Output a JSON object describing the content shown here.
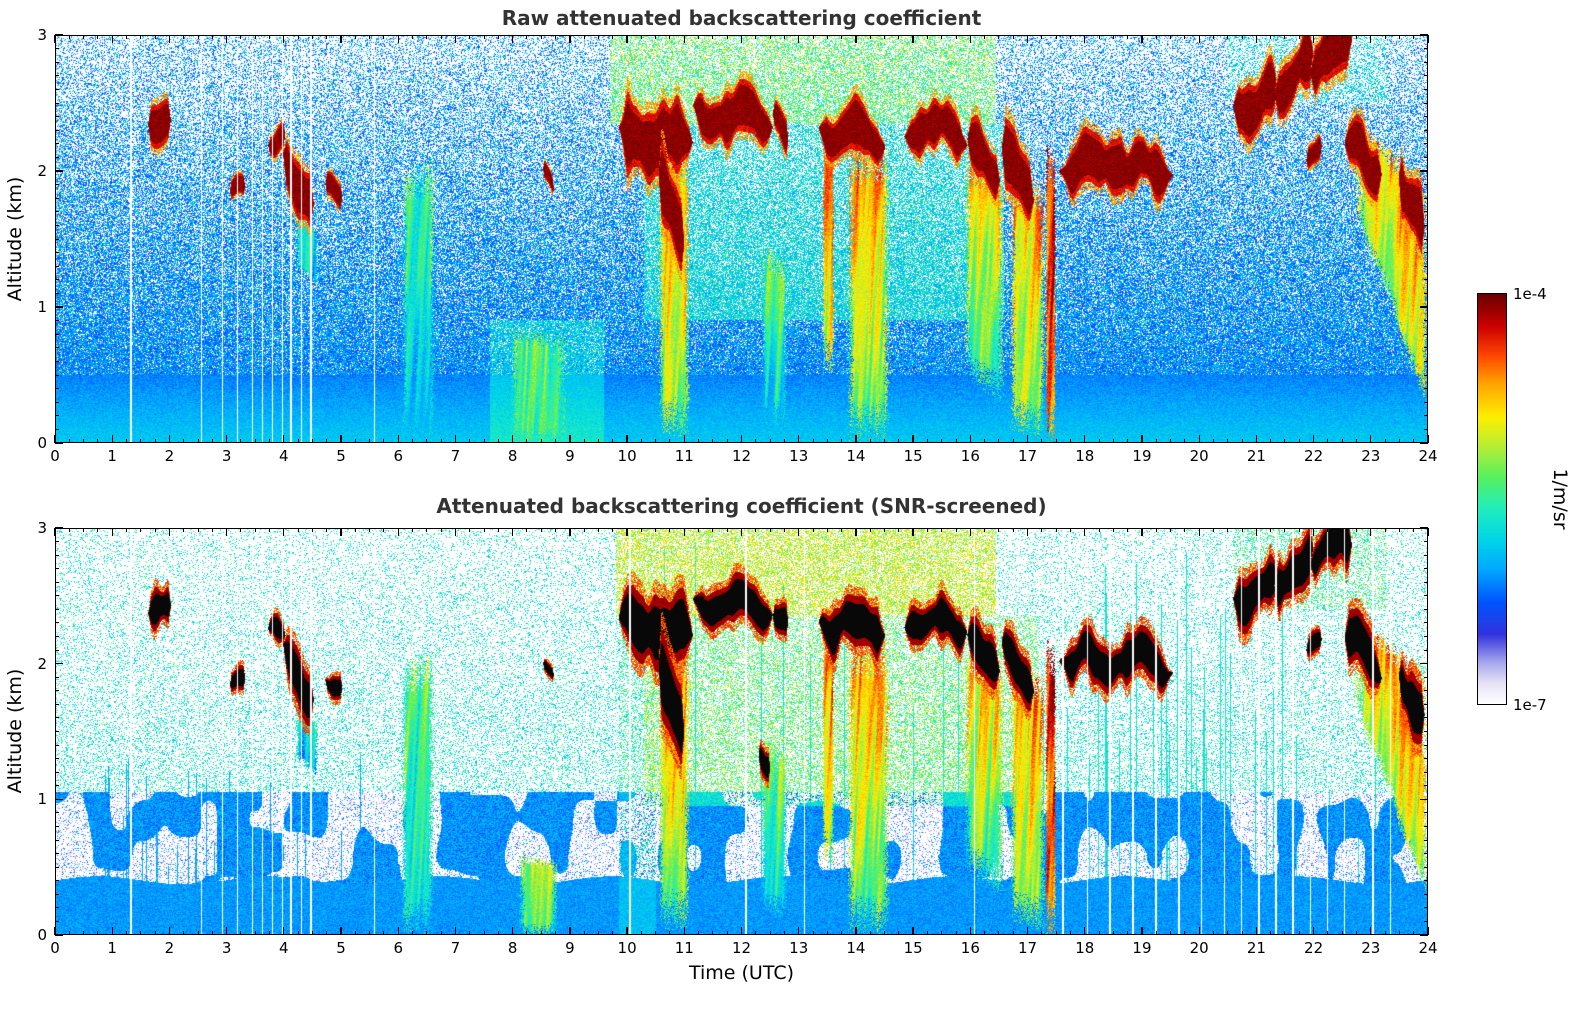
{
  "colorbar": {
    "max_label": "1e-4",
    "min_label": "1e-7",
    "units_label": "1/m/sr",
    "scale": "log",
    "stops": [
      [
        0,
        "#ffffff"
      ],
      [
        0.05,
        "#e8e4f6"
      ],
      [
        0.1,
        "#aaaaee"
      ],
      [
        0.17,
        "#3333dd"
      ],
      [
        0.25,
        "#0055ff"
      ],
      [
        0.33,
        "#00aaff"
      ],
      [
        0.4,
        "#00d5e8"
      ],
      [
        0.48,
        "#22eebb"
      ],
      [
        0.55,
        "#55f060"
      ],
      [
        0.63,
        "#b8ee33"
      ],
      [
        0.7,
        "#ffee00"
      ],
      [
        0.78,
        "#ffa500"
      ],
      [
        0.85,
        "#ff4400"
      ],
      [
        0.92,
        "#cc0000"
      ],
      [
        1,
        "#660000"
      ]
    ]
  },
  "chart_data": [
    {
      "type": "heatmap",
      "title": "Raw attenuated backscattering coefficient",
      "xlabel": "",
      "ylabel": "Altitude (km)",
      "xlim": [
        0,
        24
      ],
      "ylim": [
        0,
        3
      ],
      "xticks": [
        0,
        1,
        2,
        3,
        4,
        5,
        6,
        7,
        8,
        9,
        10,
        11,
        12,
        13,
        14,
        15,
        16,
        17,
        18,
        19,
        20,
        21,
        22,
        23,
        24
      ],
      "yticks": [
        0,
        1,
        2,
        3
      ],
      "x_minor_step": 0.25,
      "y_minor_step": 0.1,
      "value_min": "1e-7",
      "value_max": "1e-4",
      "units": "1/m/sr",
      "variant": "raw",
      "description": "Lidar time-height curtain 0-24 UTC, 0-3 km. Dark-red cloud layers near 2-2.5 km, orange precipitation fall streaks beneath them, blue boundary-layer aerosol below ~0.5 km, blue/white noise speckle aloft.",
      "features": {
        "clouds": [
          [
            1.62,
            2.02,
            2.42,
            2.32,
            0.24
          ],
          [
            3.05,
            3.32,
            1.95,
            1.88,
            0.14
          ],
          [
            3.72,
            4.02,
            2.28,
            2.15,
            0.16
          ],
          [
            3.98,
            4.52,
            2.12,
            1.68,
            0.3
          ],
          [
            4.72,
            5.02,
            1.95,
            1.85,
            0.13
          ],
          [
            8.53,
            8.72,
            1.95,
            1.9,
            0.1
          ],
          [
            9.85,
            11.15,
            2.28,
            2.22,
            0.45
          ],
          [
            10.55,
            11.0,
            1.95,
            1.58,
            0.5
          ],
          [
            11.15,
            12.55,
            2.42,
            2.4,
            0.3
          ],
          [
            12.55,
            12.82,
            2.33,
            2.28,
            0.18
          ],
          [
            13.35,
            14.52,
            2.32,
            2.25,
            0.3
          ],
          [
            14.85,
            15.95,
            2.33,
            2.3,
            0.28
          ],
          [
            15.95,
            16.52,
            2.18,
            1.95,
            0.33
          ],
          [
            16.55,
            17.12,
            2.12,
            1.85,
            0.38
          ],
          [
            17.55,
            19.55,
            2.05,
            2.0,
            0.3
          ],
          [
            20.6,
            21.42,
            2.5,
            2.56,
            0.32
          ],
          [
            21.32,
            22.02,
            2.6,
            2.76,
            0.32
          ],
          [
            21.95,
            22.68,
            2.8,
            2.92,
            0.34
          ],
          [
            21.88,
            22.15,
            2.12,
            2.12,
            0.14
          ],
          [
            22.55,
            23.2,
            2.2,
            2.0,
            0.33
          ],
          [
            23.5,
            23.95,
            1.95,
            1.62,
            0.4
          ]
        ],
        "plumes": [
          [
            6.05,
            6.65,
            2.0,
            2.12,
            0.0,
            0.0,
            0.5,
            0.38
          ],
          [
            7.95,
            8.95,
            0.85,
            0.78,
            0.0,
            0.0,
            0.55,
            0.46
          ],
          [
            10.55,
            11.1,
            2.2,
            2.15,
            0.05,
            0.02,
            0.82,
            0.55
          ],
          [
            12.35,
            12.8,
            1.5,
            1.32,
            0.18,
            0.1,
            0.52,
            0.4
          ],
          [
            13.42,
            13.62,
            2.3,
            2.3,
            0.55,
            0.5,
            0.86,
            0.6
          ],
          [
            13.85,
            14.6,
            2.2,
            2.18,
            0.0,
            0.0,
            0.8,
            0.52
          ],
          [
            15.9,
            16.6,
            2.15,
            2.0,
            0.5,
            0.25,
            0.76,
            0.5
          ],
          [
            16.7,
            17.32,
            2.0,
            1.92,
            0.1,
            0.0,
            0.8,
            0.55
          ],
          [
            17.32,
            17.5,
            2.25,
            2.1,
            0.0,
            0.0,
            0.93,
            0.78
          ],
          [
            22.7,
            24.0,
            2.4,
            1.95,
            1.7,
            0.35,
            0.8,
            0.58
          ],
          [
            23.4,
            24.0,
            1.95,
            1.35,
            0.9,
            0.25,
            0.78,
            0.6
          ],
          [
            4.2,
            4.6,
            1.72,
            1.55,
            1.3,
            1.15,
            0.45,
            0.35
          ]
        ],
        "tints": [
          [
            9.7,
            16.45,
            2.35,
            3.0,
            0.2,
            0.25
          ],
          [
            10.3,
            16.6,
            0.9,
            2.35,
            0.1,
            0.1
          ],
          [
            20.5,
            23.3,
            2.5,
            3.0,
            0.07,
            0.08
          ],
          [
            7.6,
            9.6,
            0.0,
            0.9,
            0.08,
            0.0
          ]
        ],
        "gap_times": [
          1.32,
          2.55,
          2.92,
          3.18,
          3.45,
          3.62,
          3.8,
          3.97,
          4.12,
          4.3,
          4.47,
          5.58
        ],
        "stripe_ranges": []
      }
    },
    {
      "type": "heatmap",
      "title": "Attenuated backscattering coefficient (SNR-screened)",
      "xlabel": "Time (UTC)",
      "ylabel": "Altitude (km)",
      "xlim": [
        0,
        24
      ],
      "ylim": [
        0,
        3
      ],
      "xticks": [
        0,
        1,
        2,
        3,
        4,
        5,
        6,
        7,
        8,
        9,
        10,
        11,
        12,
        13,
        14,
        15,
        16,
        17,
        18,
        19,
        20,
        21,
        22,
        23,
        24
      ],
      "yticks": [
        0,
        1,
        2,
        3
      ],
      "x_minor_step": 0.25,
      "y_minor_step": 0.1,
      "value_min": "1e-7",
      "value_max": "1e-4",
      "units": "1/m/sr",
      "variant": "screened",
      "description": "Same field after SNR screening: low-signal noise removed (white), saturated cloud cores rendered black, vertical low-SNR profile stripes remain, solid blue aerosol layer below ~0.4 km.",
      "features": {
        "clouds": [
          [
            1.62,
            2.02,
            2.42,
            2.32,
            0.24
          ],
          [
            3.05,
            3.32,
            1.95,
            1.88,
            0.14
          ],
          [
            3.72,
            4.02,
            2.28,
            2.15,
            0.16
          ],
          [
            3.98,
            4.52,
            2.12,
            1.68,
            0.3
          ],
          [
            4.72,
            5.02,
            1.95,
            1.85,
            0.13
          ],
          [
            8.53,
            8.72,
            1.95,
            1.9,
            0.1
          ],
          [
            9.85,
            11.15,
            2.28,
            2.22,
            0.45
          ],
          [
            10.55,
            11.0,
            1.95,
            1.58,
            0.5
          ],
          [
            11.15,
            12.55,
            2.42,
            2.4,
            0.3
          ],
          [
            12.55,
            12.82,
            2.33,
            2.28,
            0.18
          ],
          [
            13.35,
            14.52,
            2.32,
            2.25,
            0.3
          ],
          [
            14.85,
            15.95,
            2.33,
            2.3,
            0.28
          ],
          [
            15.95,
            16.52,
            2.18,
            1.95,
            0.33
          ],
          [
            16.55,
            17.12,
            2.12,
            1.85,
            0.38
          ],
          [
            17.55,
            19.55,
            2.05,
            2.0,
            0.3
          ],
          [
            20.6,
            21.42,
            2.5,
            2.56,
            0.32
          ],
          [
            21.32,
            22.02,
            2.6,
            2.76,
            0.32
          ],
          [
            21.95,
            22.68,
            2.8,
            2.92,
            0.34
          ],
          [
            21.88,
            22.15,
            2.12,
            2.12,
            0.14
          ],
          [
            22.55,
            23.2,
            2.2,
            2.0,
            0.33
          ],
          [
            23.5,
            23.95,
            1.95,
            1.62,
            0.4
          ],
          [
            12.3,
            12.5,
            1.35,
            1.28,
            0.16
          ]
        ],
        "plumes": [
          [
            6.05,
            6.62,
            2.0,
            2.12,
            0.0,
            0.0,
            0.55,
            0.4
          ],
          [
            8.1,
            8.8,
            0.6,
            0.55,
            0.0,
            0.0,
            0.62,
            0.5
          ],
          [
            10.55,
            11.1,
            2.2,
            2.15,
            0.05,
            0.02,
            0.82,
            0.55
          ],
          [
            12.35,
            12.8,
            1.5,
            1.32,
            0.18,
            0.1,
            0.55,
            0.42
          ],
          [
            13.42,
            13.62,
            2.3,
            2.3,
            0.55,
            0.5,
            0.86,
            0.6
          ],
          [
            13.85,
            14.6,
            2.2,
            2.18,
            0.0,
            0.0,
            0.8,
            0.52
          ],
          [
            15.9,
            16.6,
            2.15,
            2.0,
            0.5,
            0.25,
            0.76,
            0.5
          ],
          [
            16.7,
            17.32,
            2.0,
            1.92,
            0.1,
            0.0,
            0.8,
            0.55
          ],
          [
            17.32,
            17.5,
            2.25,
            2.1,
            0.0,
            0.0,
            0.93,
            0.78
          ],
          [
            22.7,
            24.0,
            2.4,
            1.95,
            1.7,
            0.35,
            0.8,
            0.58
          ],
          [
            23.4,
            24.0,
            1.95,
            1.35,
            0.9,
            0.25,
            0.78,
            0.6
          ],
          [
            4.2,
            4.6,
            1.72,
            1.55,
            1.3,
            1.15,
            0.45,
            0.35
          ]
        ],
        "tints": [
          [
            9.8,
            16.45,
            2.35,
            3.0,
            0.22,
            0.45
          ],
          [
            10.3,
            17.2,
            0.95,
            2.35,
            0.12,
            0.25
          ],
          [
            20.6,
            23.3,
            2.4,
            3.0,
            0.08,
            0.2
          ],
          [
            9.85,
            10.5,
            0.0,
            2.35,
            0.05,
            0.18
          ]
        ],
        "gap_times": [
          1.32,
          2.55,
          2.92,
          3.18,
          3.45,
          3.62,
          3.8,
          3.97,
          4.12,
          4.3,
          4.47,
          5.58,
          10.05,
          12.08,
          13.1,
          16.08,
          17.62,
          18.05,
          18.45,
          18.85,
          19.25,
          19.65,
          20.05,
          20.45,
          20.75,
          21.05,
          21.35,
          21.65,
          21.95,
          22.25,
          22.55,
          23.05,
          23.35
        ],
        "stripe_ranges": [
          [
            0.35,
            6.6,
            0.1,
            0.5,
            1.35,
            0.3
          ],
          [
            17.55,
            20.6,
            0.18,
            1.2,
            2.9,
            0.42
          ],
          [
            20.9,
            23.3,
            0.08,
            1.0,
            2.7,
            0.42
          ],
          [
            9.8,
            17.4,
            0.04,
            1.4,
            2.9,
            0.4
          ]
        ]
      }
    }
  ]
}
